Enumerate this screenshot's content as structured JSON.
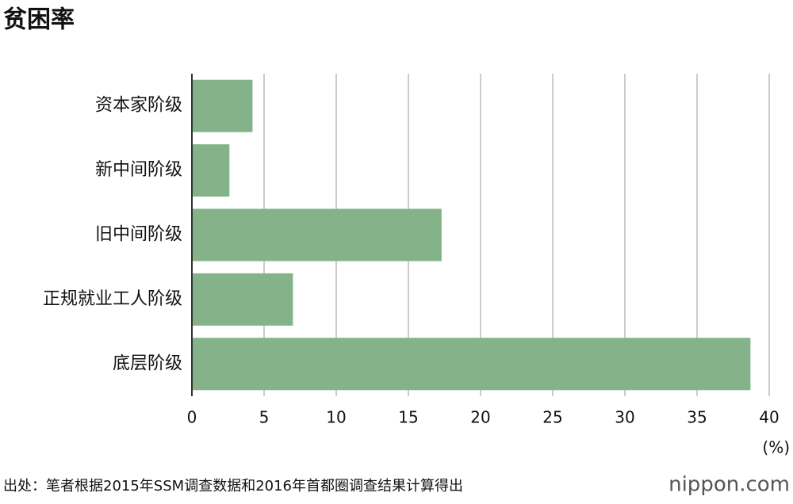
{
  "chart_data": {
    "type": "hbar",
    "title": "贫困率",
    "categories": [
      "资本家阶级",
      "新中间阶级",
      "旧中间阶级",
      "正规就业工人阶级",
      "底层阶级"
    ],
    "values": [
      4.2,
      2.6,
      17.3,
      7.0,
      38.7
    ],
    "color": "#84b38a",
    "xlim": [
      0,
      40
    ],
    "xticks": [
      0,
      5,
      10,
      15,
      20,
      25,
      30,
      35,
      40
    ],
    "grid": true,
    "unit_label": "(%)",
    "source": "出处：笔者根据2015年SSM调查数据和2016年首都圈调查结果计算得出",
    "logo": "nippon.com"
  }
}
